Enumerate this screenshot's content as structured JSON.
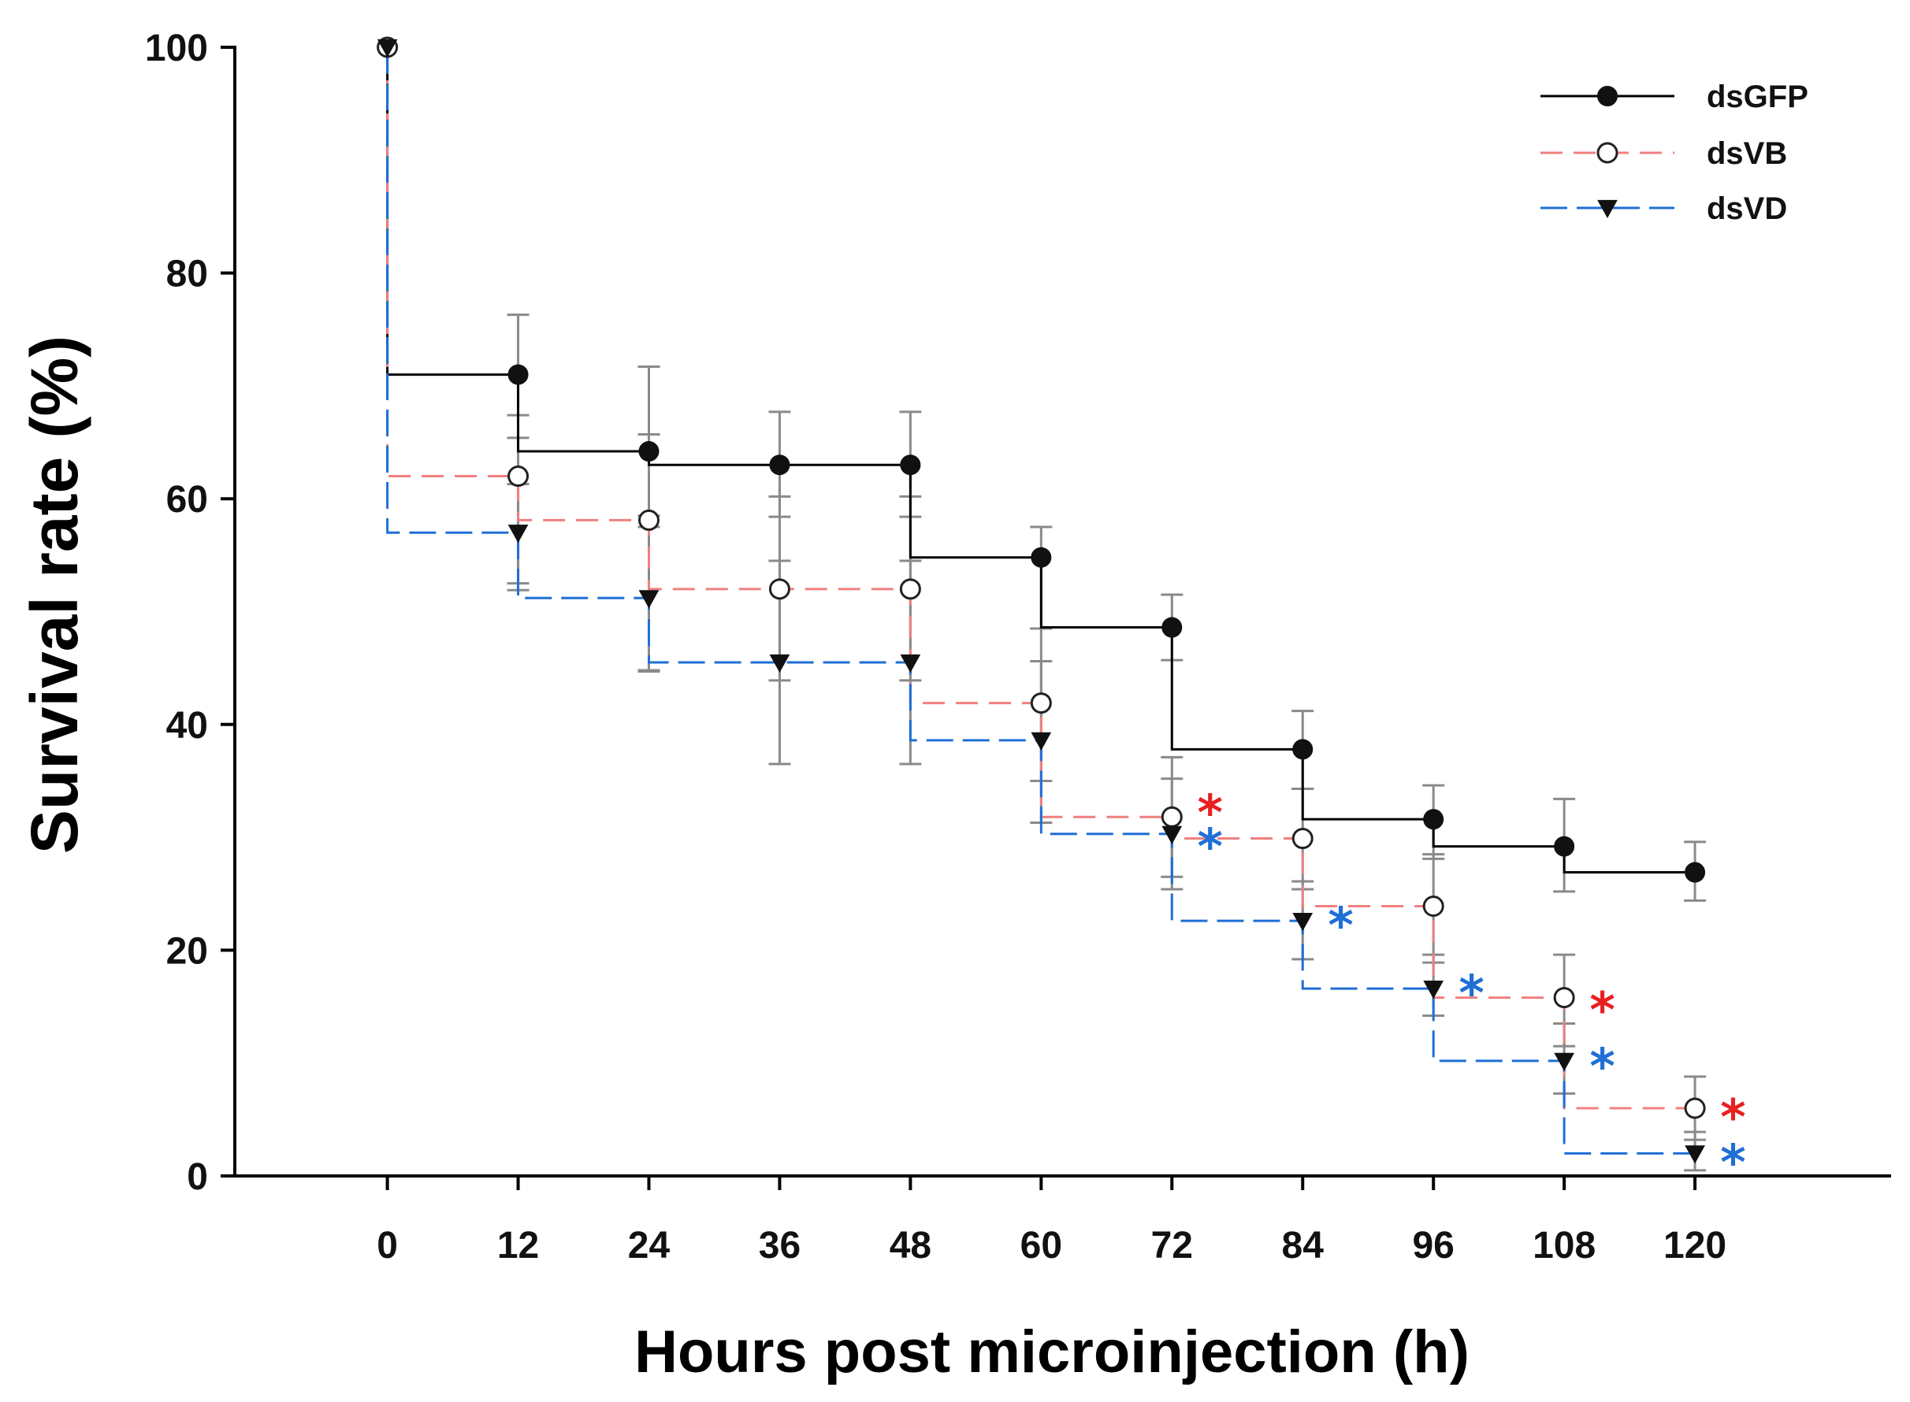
{
  "chart_data": {
    "type": "line",
    "subtype": "kaplan-meier step",
    "title": "",
    "xlabel": "Hours post microinjection (h)",
    "ylabel": "Survival rate (%)",
    "xlim": [
      -14,
      138
    ],
    "ylim": [
      0,
      100
    ],
    "x_ticks": [
      0,
      12,
      24,
      36,
      48,
      60,
      72,
      84,
      96,
      108,
      120
    ],
    "y_ticks": [
      0,
      20,
      40,
      60,
      80,
      100
    ],
    "legend_position": "top-right",
    "series": [
      {
        "name": "dsGFP",
        "color": "#000000",
        "marker": "filled-circle",
        "line": "solid",
        "x": [
          0,
          12,
          24,
          36,
          48,
          60,
          72,
          84,
          96,
          108,
          120
        ],
        "values": [
          100,
          71,
          64.2,
          63,
          63,
          54.8,
          48.6,
          37.8,
          31.6,
          29.2,
          26.9
        ],
        "steps": [
          71,
          64.2,
          63,
          63,
          54.8,
          48.6,
          37.8,
          31.6,
          29.2,
          26.9
        ],
        "error_high": [
          0,
          76.3,
          71.7,
          67.7,
          67.7,
          57.5,
          51.5,
          41.2,
          34.6,
          33.4,
          29.6
        ],
        "error_low": [
          0,
          67.4,
          57.5,
          58.4,
          58.4,
          48.5,
          45.7,
          34.3,
          28.1,
          25.2,
          24.4
        ]
      },
      {
        "name": "dsVB",
        "color": "#f08080",
        "marker": "open-circle",
        "line": "dashed",
        "x": [
          0,
          12,
          24,
          36,
          48,
          60,
          72,
          84,
          96,
          108,
          120
        ],
        "values": [
          100,
          62,
          58.1,
          52,
          52,
          41.9,
          31.8,
          29.9,
          23.9,
          15.8,
          6
        ],
        "steps": [
          62,
          58.1,
          52,
          52,
          41.9,
          31.8,
          29.9,
          23.9,
          15.8,
          6,
          6
        ],
        "error_high": [
          0,
          65.4,
          65.7,
          60.2,
          60.2,
          48.5,
          37.1,
          34.3,
          28.5,
          19.6,
          8.8
        ],
        "error_low": [
          0,
          52.5,
          44.7,
          43.9,
          43.9,
          35,
          26.5,
          25.4,
          18.9,
          11.5,
          3.2
        ]
      },
      {
        "name": "dsVD",
        "color": "#1f6fd6",
        "marker": "filled-triangle-down",
        "line": "dashed",
        "x": [
          0,
          12,
          24,
          36,
          48,
          60,
          72,
          84,
          96,
          108,
          120
        ],
        "values": [
          100,
          57,
          51.2,
          45.5,
          45.5,
          38.6,
          30.3,
          22.6,
          16.6,
          10.2,
          2
        ],
        "steps": [
          57,
          51.2,
          45.5,
          45.5,
          38.6,
          30.3,
          22.6,
          16.6,
          10.2,
          2,
          2
        ],
        "error_high": [
          0,
          61.3,
          58.5,
          54.5,
          54.5,
          45.6,
          35.2,
          26.1,
          19.6,
          13.5,
          3.9
        ],
        "error_low": [
          0,
          51.9,
          44.8,
          36.5,
          36.5,
          31.3,
          25.4,
          19.2,
          14.2,
          7.3,
          0.5
        ]
      }
    ],
    "annotations": [
      {
        "text": "*",
        "color": "#e82020",
        "x": 75.5,
        "y": 32.5
      },
      {
        "text": "*",
        "color": "#1f6fd6",
        "x": 75.5,
        "y": 29.5
      },
      {
        "text": "*",
        "color": "#1f6fd6",
        "x": 87.5,
        "y": 22.5
      },
      {
        "text": "*",
        "color": "#1f6fd6",
        "x": 99.5,
        "y": 16.5
      },
      {
        "text": "*",
        "color": "#e82020",
        "x": 111.5,
        "y": 15.0
      },
      {
        "text": "*",
        "color": "#1f6fd6",
        "x": 111.5,
        "y": 10.0
      },
      {
        "text": "*",
        "color": "#e82020",
        "x": 123.5,
        "y": 5.5
      },
      {
        "text": "*",
        "color": "#1f6fd6",
        "x": 123.5,
        "y": 1.5
      }
    ]
  }
}
